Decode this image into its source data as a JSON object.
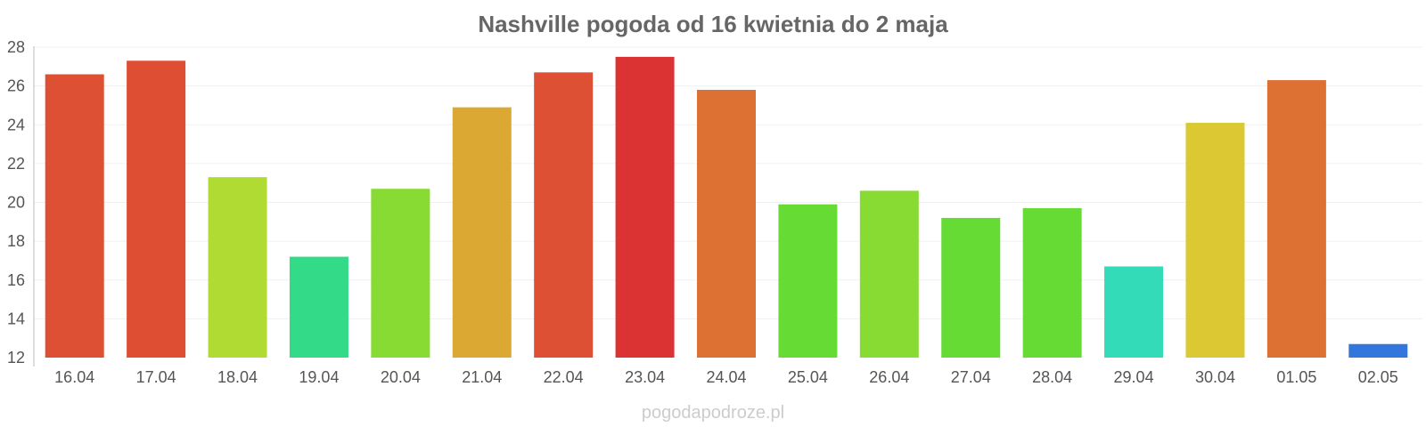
{
  "chart_data": {
    "type": "bar",
    "title": "Nashville pogoda od 16 kwietnia do 2 maja",
    "xlabel": "",
    "ylabel": "",
    "categories": [
      "16.04",
      "17.04",
      "18.04",
      "19.04",
      "20.04",
      "21.04",
      "22.04",
      "23.04",
      "24.04",
      "25.04",
      "26.04",
      "27.04",
      "28.04",
      "29.04",
      "30.04",
      "01.05",
      "02.05"
    ],
    "values": [
      26.6,
      27.3,
      21.3,
      17.2,
      20.7,
      24.9,
      26.7,
      27.5,
      25.8,
      19.9,
      20.6,
      19.2,
      19.7,
      16.7,
      24.1,
      26.3,
      12.7
    ],
    "colors": [
      "#dd5033",
      "#dd4e33",
      "#b0db33",
      "#33db88",
      "#88db33",
      "#dba833",
      "#dd5033",
      "#db3333",
      "#dd7033",
      "#66db33",
      "#88db33",
      "#66db33",
      "#66db33",
      "#33dbb8",
      "#dbc833",
      "#dd7033",
      "#3377dd"
    ],
    "yticks": [
      12,
      14,
      16,
      18,
      20,
      22,
      24,
      26,
      28
    ],
    "ylim": [
      12,
      28
    ],
    "grid": true,
    "legend": "none"
  },
  "watermark": "pogodapodroze.pl"
}
